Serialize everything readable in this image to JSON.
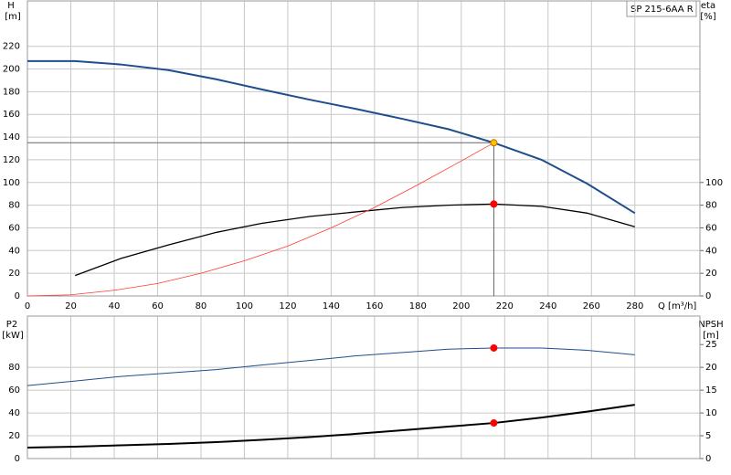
{
  "chart_data": [
    {
      "type": "line",
      "title": "SP 215-6AA R",
      "y_label": "H",
      "y_unit": "[m]",
      "y2_label": "eta",
      "y2_unit": "[%]",
      "x_label": "Q [m³/h]",
      "xlim": [
        0,
        310
      ],
      "xticks": [
        0,
        20,
        40,
        60,
        80,
        100,
        120,
        140,
        160,
        180,
        200,
        220,
        240,
        260,
        280
      ],
      "ylim": [
        0,
        260
      ],
      "yticks": [
        0,
        20,
        40,
        60,
        80,
        100,
        120,
        140,
        160,
        180,
        200,
        220
      ],
      "y2lim": [
        0,
        260
      ],
      "y2ticks": [
        0,
        20,
        40,
        60,
        80,
        100
      ],
      "grid": true,
      "series": [
        {
          "color": "#1f4e8c",
          "width": 2,
          "x": [
            0,
            22,
            43,
            65,
            87,
            108,
            130,
            151,
            173,
            194,
            215,
            237,
            258,
            280
          ],
          "values": [
            207,
            207,
            204,
            199,
            191,
            182,
            173,
            165,
            156,
            147,
            135,
            120,
            99,
            73
          ]
        },
        {
          "color": "#000000",
          "width": 1.3,
          "axis": "y2",
          "x": [
            22,
            43,
            65,
            87,
            108,
            130,
            151,
            173,
            194,
            215,
            237,
            258,
            280
          ],
          "values": [
            18,
            33,
            45,
            56,
            64,
            70,
            74,
            78,
            80,
            81,
            79,
            73,
            61
          ]
        },
        {
          "color": "#ff3b30",
          "width": 0.8,
          "x": [
            0,
            20,
            40,
            60,
            80,
            100,
            120,
            140,
            160,
            180,
            200,
            215
          ],
          "values": [
            0,
            1,
            5,
            11,
            20,
            31,
            44,
            60,
            78,
            98,
            119,
            135
          ]
        },
        {
          "color": "#ffc000",
          "marker": true,
          "crosshair": true,
          "x": [
            215
          ],
          "values": [
            135
          ]
        },
        {
          "color": "#ff0000",
          "marker": true,
          "axis": "y2",
          "x": [
            215
          ],
          "values": [
            81
          ]
        }
      ]
    },
    {
      "type": "line",
      "y_label": "P2",
      "y_unit": "[kW]",
      "y2_label": "NPSH",
      "y2_unit": "[m]",
      "xlim": [
        0,
        310
      ],
      "xticks": [
        0,
        20,
        40,
        60,
        80,
        100,
        120,
        140,
        160,
        180,
        200,
        220,
        240,
        260,
        280
      ],
      "ylim": [
        0,
        125
      ],
      "yticks": [
        0,
        20,
        40,
        60,
        80
      ],
      "y2lim": [
        0,
        31.25
      ],
      "y2ticks": [
        0,
        5,
        10,
        15,
        20,
        25
      ],
      "grid": true,
      "series": [
        {
          "color": "#1f4e8c",
          "width": 1,
          "x": [
            0,
            22,
            43,
            65,
            87,
            108,
            130,
            151,
            173,
            194,
            215,
            237,
            258,
            280
          ],
          "values": [
            64,
            68,
            72,
            75,
            78,
            82,
            86,
            90,
            93,
            96,
            97,
            97,
            95,
            91
          ]
        },
        {
          "color": "#000000",
          "width": 2,
          "axis": "y2",
          "x": [
            0,
            22,
            43,
            65,
            87,
            108,
            130,
            151,
            173,
            194,
            215,
            237,
            258,
            280
          ],
          "values": [
            2.4,
            2.6,
            2.9,
            3.2,
            3.6,
            4.1,
            4.7,
            5.4,
            6.2,
            7,
            7.8,
            9,
            10.3,
            11.8
          ]
        },
        {
          "color": "#ff0000",
          "marker": true,
          "x": [
            215
          ],
          "values": [
            97
          ]
        },
        {
          "color": "#ff0000",
          "marker": true,
          "axis": "y2",
          "x": [
            215
          ],
          "values": [
            7.8
          ]
        }
      ]
    }
  ]
}
